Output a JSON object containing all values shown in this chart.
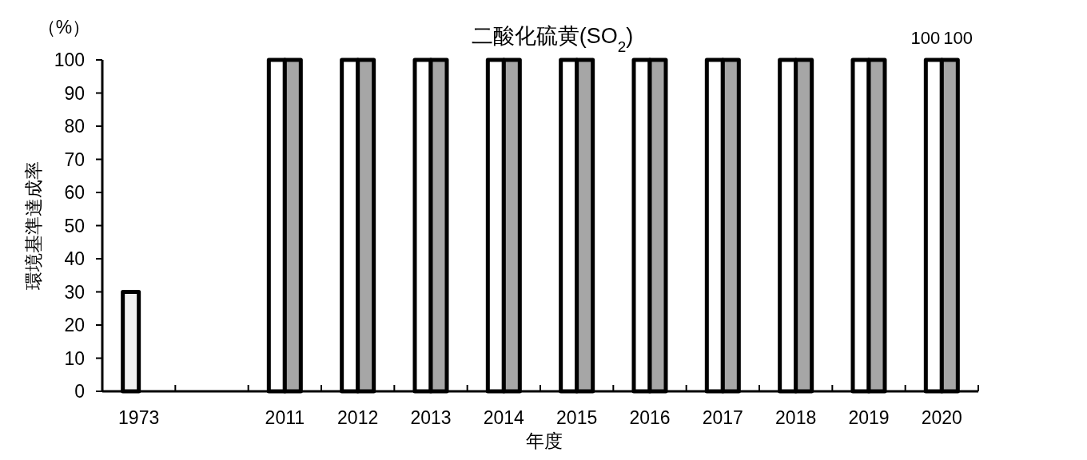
{
  "chart_data": {
    "type": "bar",
    "title": "二酸化硫黄(SO$_{2}$)",
    "xlabel": "年度",
    "ylabel": "環境基準達成率",
    "annotations": [
      "（%）"
    ],
    "categories": [
      "1973",
      null,
      "2011",
      "2012",
      "2013",
      "2014",
      "2015",
      "2016",
      "2017",
      "2018",
      "2019",
      "2020"
    ],
    "series": [
      {
        "colors": [
          "#f2f2f2",
          null,
          "#ffffff",
          "#ffffff",
          "#ffffff",
          "#ffffff",
          "#ffffff",
          "#ffffff",
          "#ffffff",
          "#ffffff",
          "#ffffff",
          "#ffffff"
        ],
        "values": [
          30,
          null,
          100,
          100,
          100,
          100,
          100,
          100,
          100,
          100,
          100,
          100
        ],
        "value_labels": [
          null,
          null,
          null,
          null,
          null,
          null,
          null,
          null,
          null,
          null,
          null,
          "100"
        ]
      },
      {
        "color": "#a6a6a6",
        "values": [
          null,
          null,
          100,
          100,
          100,
          100,
          100,
          100,
          100,
          100,
          100,
          100
        ],
        "value_labels": [
          null,
          null,
          null,
          null,
          null,
          null,
          null,
          null,
          null,
          null,
          null,
          "100"
        ]
      }
    ],
    "ylim": [
      0,
      100
    ],
    "yticks": [
      0,
      10,
      20,
      30,
      40,
      50,
      60,
      70,
      80,
      90,
      100
    ],
    "grid": false
  }
}
